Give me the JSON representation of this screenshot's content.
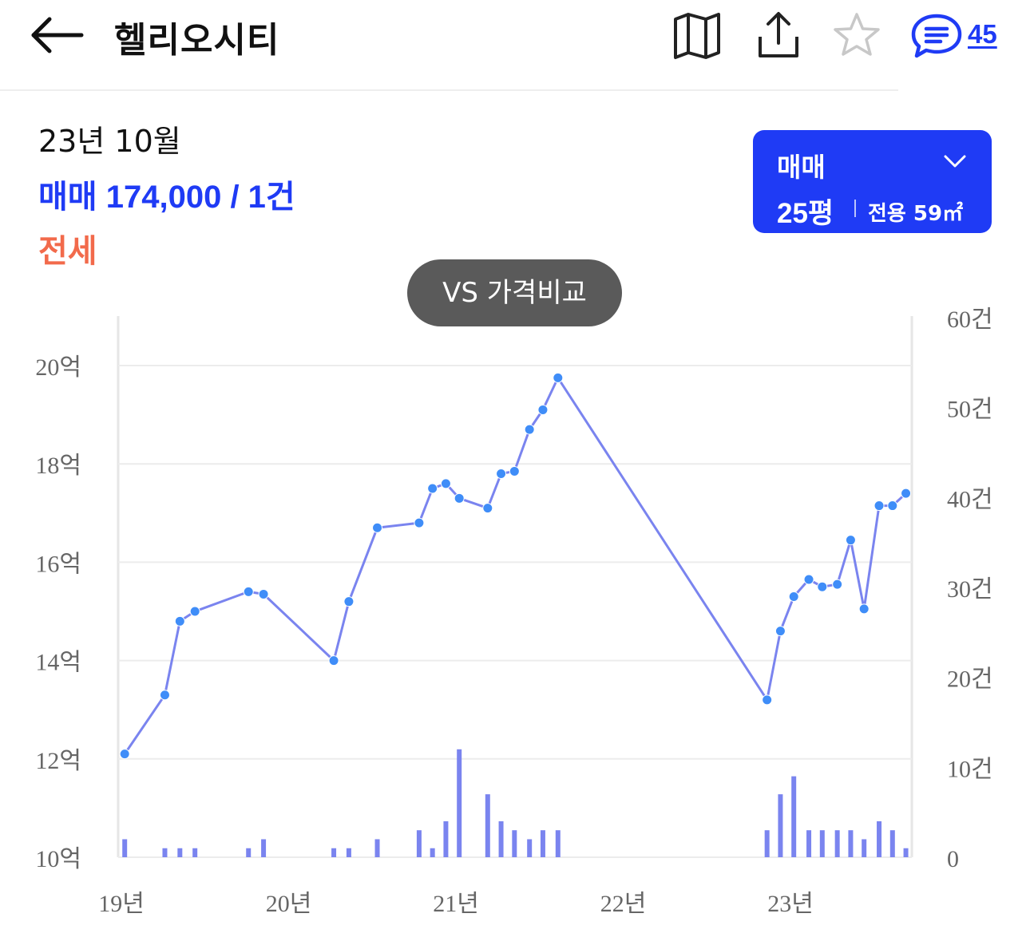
{
  "header": {
    "title": "헬리오시티",
    "comment_count": "45",
    "icons": {
      "back": "arrow-left-icon",
      "map": "map-icon",
      "share": "share-icon",
      "favorite": "star-outline-icon",
      "comments": "chat-icon"
    }
  },
  "summary": {
    "month": "23년 10월",
    "sale_label": "매매",
    "sale_value": "174,000 / 1건",
    "jeonse_label": "전세"
  },
  "type_selector": {
    "trade": "매매",
    "pyeong": "25평",
    "area": "전용 59㎡"
  },
  "compare_button": "VS 가격비교",
  "colors": {
    "accent": "#1f3bf5",
    "jeonse": "#f26a4b",
    "line": "#7a84ef",
    "point": "#3f8df8",
    "bar": "#7a84ef"
  },
  "chart_data": {
    "type": "line",
    "x_ticks": [
      {
        "label": "19년",
        "t": 2019.0
      },
      {
        "label": "20년",
        "t": 2020.0
      },
      {
        "label": "21년",
        "t": 2021.0
      },
      {
        "label": "22년",
        "t": 2022.0
      },
      {
        "label": "23년",
        "t": 2023.0
      }
    ],
    "y_left": {
      "ticks": [
        10,
        12,
        14,
        16,
        18,
        20
      ],
      "suffix": "억",
      "range": [
        10,
        21
      ]
    },
    "y_right": {
      "ticks": [
        0,
        10,
        20,
        30,
        40,
        50,
        60
      ],
      "suffix": "건",
      "range": [
        0,
        60
      ]
    },
    "grid": true,
    "price_series": [
      {
        "t": 2019.02,
        "v": 12.1
      },
      {
        "t": 2019.26,
        "v": 13.3
      },
      {
        "t": 2019.35,
        "v": 14.8
      },
      {
        "t": 2019.44,
        "v": 15.0
      },
      {
        "t": 2019.76,
        "v": 15.4
      },
      {
        "t": 2019.85,
        "v": 15.35
      },
      {
        "t": 2020.27,
        "v": 14.0
      },
      {
        "t": 2020.36,
        "v": 15.2
      },
      {
        "t": 2020.53,
        "v": 16.7
      },
      {
        "t": 2020.78,
        "v": 16.8
      },
      {
        "t": 2020.86,
        "v": 17.5
      },
      {
        "t": 2020.94,
        "v": 17.6
      },
      {
        "t": 2021.02,
        "v": 17.3
      },
      {
        "t": 2021.19,
        "v": 17.1
      },
      {
        "t": 2021.27,
        "v": 17.8
      },
      {
        "t": 2021.35,
        "v": 17.85
      },
      {
        "t": 2021.44,
        "v": 18.7
      },
      {
        "t": 2021.52,
        "v": 19.1
      },
      {
        "t": 2021.61,
        "v": 19.75
      },
      {
        "t": 2022.86,
        "v": 13.2
      },
      {
        "t": 2022.94,
        "v": 14.6
      },
      {
        "t": 2023.02,
        "v": 15.3
      },
      {
        "t": 2023.11,
        "v": 15.65
      },
      {
        "t": 2023.19,
        "v": 15.5
      },
      {
        "t": 2023.28,
        "v": 15.55
      },
      {
        "t": 2023.36,
        "v": 16.45
      },
      {
        "t": 2023.44,
        "v": 15.05
      },
      {
        "t": 2023.53,
        "v": 17.15
      },
      {
        "t": 2023.61,
        "v": 17.15
      },
      {
        "t": 2023.69,
        "v": 17.4
      }
    ],
    "volume_series": [
      {
        "t": 2019.02,
        "v": 2
      },
      {
        "t": 2019.26,
        "v": 1
      },
      {
        "t": 2019.35,
        "v": 1
      },
      {
        "t": 2019.44,
        "v": 1
      },
      {
        "t": 2019.76,
        "v": 1
      },
      {
        "t": 2019.85,
        "v": 2
      },
      {
        "t": 2020.27,
        "v": 1
      },
      {
        "t": 2020.36,
        "v": 1
      },
      {
        "t": 2020.53,
        "v": 2
      },
      {
        "t": 2020.78,
        "v": 3
      },
      {
        "t": 2020.86,
        "v": 1
      },
      {
        "t": 2020.94,
        "v": 4
      },
      {
        "t": 2021.02,
        "v": 12
      },
      {
        "t": 2021.19,
        "v": 7
      },
      {
        "t": 2021.27,
        "v": 4
      },
      {
        "t": 2021.35,
        "v": 3
      },
      {
        "t": 2021.44,
        "v": 2
      },
      {
        "t": 2021.52,
        "v": 3
      },
      {
        "t": 2021.61,
        "v": 3
      },
      {
        "t": 2022.86,
        "v": 3
      },
      {
        "t": 2022.94,
        "v": 7
      },
      {
        "t": 2023.02,
        "v": 9
      },
      {
        "t": 2023.11,
        "v": 3
      },
      {
        "t": 2023.19,
        "v": 3
      },
      {
        "t": 2023.28,
        "v": 3
      },
      {
        "t": 2023.36,
        "v": 3
      },
      {
        "t": 2023.44,
        "v": 2
      },
      {
        "t": 2023.53,
        "v": 4
      },
      {
        "t": 2023.61,
        "v": 3
      },
      {
        "t": 2023.69,
        "v": 1
      }
    ]
  }
}
